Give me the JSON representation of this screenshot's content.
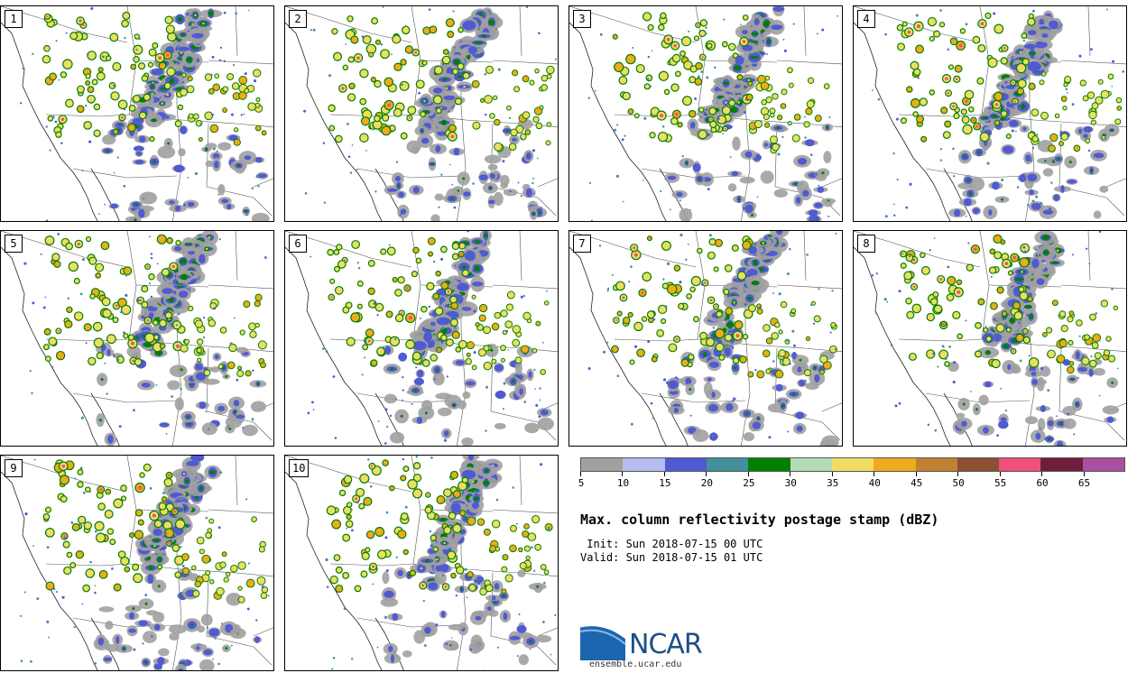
{
  "panels": [
    {
      "label": "1"
    },
    {
      "label": "2"
    },
    {
      "label": "3"
    },
    {
      "label": "4"
    },
    {
      "label": "5"
    },
    {
      "label": "6"
    },
    {
      "label": "7"
    },
    {
      "label": "8"
    },
    {
      "label": "9"
    },
    {
      "label": "10"
    }
  ],
  "colorbar": {
    "colors": [
      "#a0a0a0",
      "#b4bcf0",
      "#505ad2",
      "#44909a",
      "#008000",
      "#b4dcb4",
      "#f0dc64",
      "#f0aa1e",
      "#c08232",
      "#8c5032",
      "#f0507e",
      "#6e1e3c",
      "#aa50a0"
    ],
    "tick_labels": [
      "5",
      "10",
      "15",
      "20",
      "25",
      "30",
      "35",
      "40",
      "45",
      "50",
      "55",
      "60",
      "65"
    ]
  },
  "title": "Max. column reflectivity postage stamp (dBZ)",
  "init": " Init: Sun 2018-07-15 00 UTC",
  "valid": "Valid: Sun 2018-07-15 01 UTC",
  "logo": {
    "text": "NCAR",
    "url": "ensemble.ucar.edu"
  }
}
